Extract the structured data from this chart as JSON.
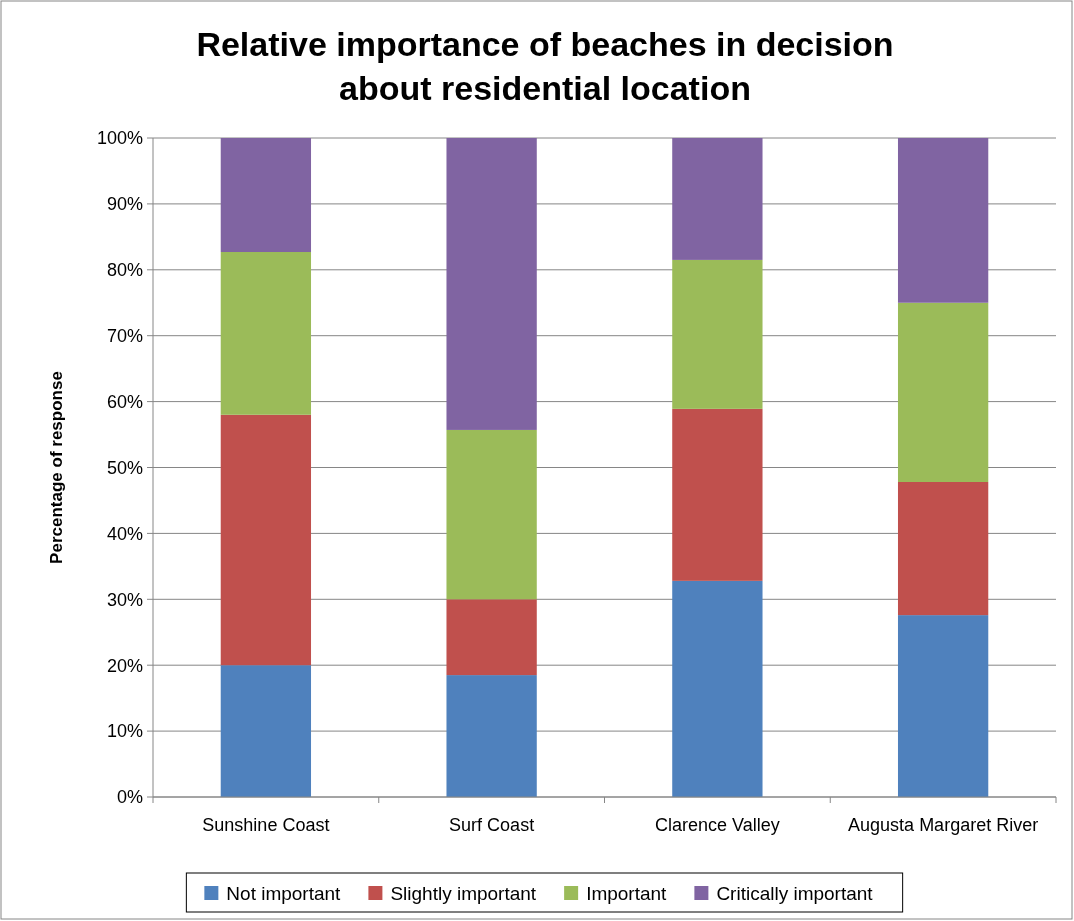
{
  "chart_data": {
    "type": "bar",
    "stacked": true,
    "title": "Relative importance of beaches in decision about residential location",
    "ylabel": "Percentage of response",
    "categories": [
      "Sunshine Coast",
      "Surf Coast",
      "Clarence Valley",
      "Augusta Margaret River"
    ],
    "series": [
      {
        "name": "Not important",
        "color": "#4f81bd",
        "values": [
          20,
          18.5,
          32.8,
          27.6
        ]
      },
      {
        "name": "Slightly important",
        "color": "#c0504d",
        "values": [
          38,
          11.5,
          26.1,
          20.2
        ]
      },
      {
        "name": "Important",
        "color": "#9bbb59",
        "values": [
          24.7,
          25.7,
          22.6,
          27.2
        ]
      },
      {
        "name": "Critically important",
        "color": "#8064a2",
        "values": [
          17.3,
          44.3,
          18.5,
          25
        ]
      }
    ],
    "ylim": [
      0,
      100
    ],
    "yticks": [
      {
        "value": 0,
        "label": "0%"
      },
      {
        "value": 10,
        "label": "10%"
      },
      {
        "value": 20,
        "label": "20%"
      },
      {
        "value": 30,
        "label": "30%"
      },
      {
        "value": 40,
        "label": "40%"
      },
      {
        "value": 50,
        "label": "50%"
      },
      {
        "value": 60,
        "label": "60%"
      },
      {
        "value": 70,
        "label": "70%"
      },
      {
        "value": 80,
        "label": "80%"
      },
      {
        "value": 90,
        "label": "90%"
      },
      {
        "value": 100,
        "label": "100%"
      }
    ],
    "grid": "y",
    "legend": "bottom"
  }
}
